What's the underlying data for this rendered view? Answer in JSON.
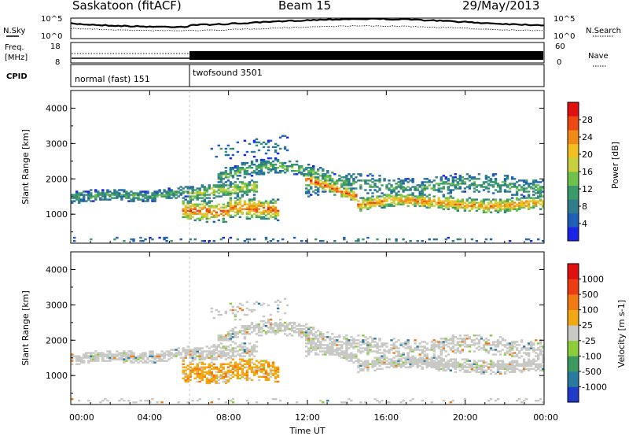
{
  "header": {
    "station": "Saskatoon (fitACF)",
    "beam": "Beam 15",
    "date": "29/May/2013"
  },
  "noise_panel": {
    "left_label": "N.Sky",
    "right_label": "N.Search",
    "left_ticks": [
      "10^5",
      "10^0"
    ],
    "right_ticks": [
      "10^5",
      "10^0"
    ]
  },
  "freq_panel": {
    "left_label_line1": "Freq.",
    "left_label_line2": "[MHz]",
    "left_ticks": [
      "18",
      "8"
    ],
    "right_label": "Nave",
    "right_ticks": [
      "60",
      "0"
    ]
  },
  "cpid": {
    "label": "CPID",
    "segments": [
      {
        "name": "normal (fast) 151",
        "start_hr": 0,
        "end_hr": 6
      },
      {
        "name": "twofsound 3501",
        "start_hr": 6,
        "end_hr": 24
      }
    ]
  },
  "x_axis": {
    "label": "Time UT",
    "ticks": [
      "00:00",
      "04:00",
      "08:00",
      "12:00",
      "16:00",
      "20:00",
      "00:00"
    ]
  },
  "chart_data": [
    {
      "type": "heatmap",
      "name": "power",
      "ylabel": "Slant Range [km]",
      "y_ticks": [
        "1000",
        "2000",
        "3000",
        "4000"
      ],
      "ylim": [
        180,
        4500
      ],
      "xlim": [
        0,
        24
      ],
      "colorbar": {
        "label": "Power [dB]",
        "ticks": [
          "4",
          "8",
          "12",
          "16",
          "20",
          "24",
          "28"
        ],
        "colors": [
          "#1a24e8",
          "#1e5fb8",
          "#2f7d8a",
          "#3a9a6a",
          "#6ec24a",
          "#c9d040",
          "#f2c020",
          "#f28a18",
          "#ec4a12",
          "#e01010"
        ]
      }
    },
    {
      "type": "heatmap",
      "name": "velocity",
      "ylabel": "Slant Range [km]",
      "y_ticks": [
        "1000",
        "2000",
        "3000",
        "4000"
      ],
      "ylim": [
        180,
        4500
      ],
      "xlim": [
        0,
        24
      ],
      "colorbar": {
        "label": "Velocity [m s-1]",
        "ticks": [
          "1000",
          "500",
          "100",
          "25",
          "-25",
          "-100",
          "-500",
          "-1000"
        ],
        "colors": [
          "#1e3cc8",
          "#2a7aa0",
          "#3c9a60",
          "#8ccd3c",
          "#c8c8c4",
          "#f2a810",
          "#f27a12",
          "#ec3c12",
          "#e01010"
        ]
      }
    }
  ]
}
